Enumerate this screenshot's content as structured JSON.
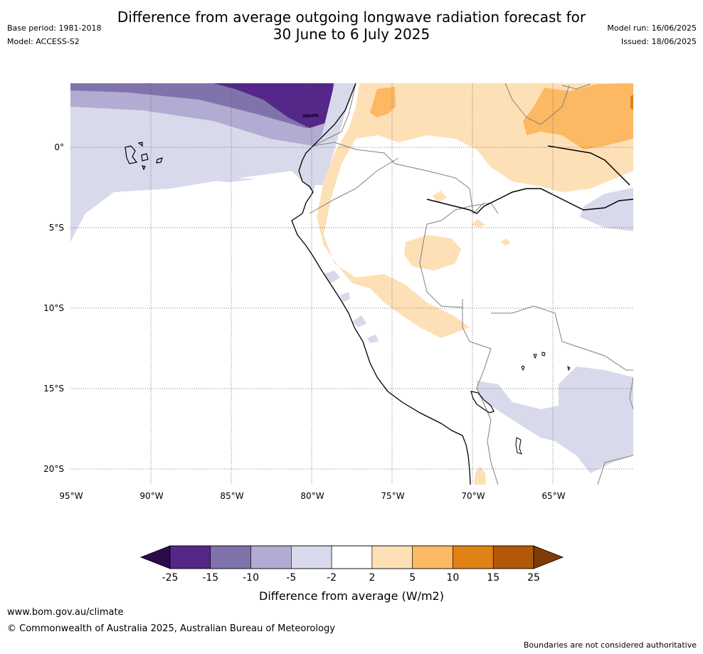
{
  "header": {
    "title_line1": "Difference from average outgoing longwave radiation forecast for",
    "title_line2": "30 June to 6 July 2025",
    "base_period": "Base period: 1981-2018",
    "model": "Model: ACCESS-S2",
    "model_run": "Model run: 16/06/2025",
    "issued": "Issued: 18/06/2025"
  },
  "map": {
    "region": "Western South America and eastern tropical Pacific",
    "lon_range": [
      -95,
      -60
    ],
    "lat_range": [
      -21,
      4
    ],
    "lat_labels": [
      "0°",
      "5°S",
      "10°S",
      "15°S",
      "20°S"
    ],
    "lon_labels": [
      "95°W",
      "90°W",
      "85°W",
      "80°W",
      "75°W",
      "70°W",
      "65°W"
    ],
    "gridlines": "dotted",
    "colors": {
      "le_-25": "#2d0a4a",
      "-25_-15": "#542788",
      "-15_-10": "#8073ac",
      "-10_-5": "#b2abd2",
      "-5_-2": "#d8daeb",
      "-2_2": "#ffffff",
      "2_5": "#fee0b6",
      "5_10": "#fdb863",
      "10_15": "#e08214",
      "15_25": "#b35806",
      "ge_25": "#7f3b08"
    }
  },
  "colorbar": {
    "tick_labels": [
      "-25",
      "-15",
      "-10",
      "-5",
      "-2",
      "2",
      "5",
      "10",
      "15",
      "25"
    ],
    "colors": [
      "#542788",
      "#8073ac",
      "#b2abd2",
      "#d8daeb",
      "#ffffff",
      "#fee0b6",
      "#fdb863",
      "#e08214",
      "#b35806"
    ],
    "low_extend_color": "#2d0a4a",
    "high_extend_color": "#7f3b08",
    "title": "Difference from average (W/m2)"
  },
  "footer": {
    "url": "www.bom.gov.au/climate",
    "copyright": "© Commonwealth of Australia 2025, Australian Bureau of Meteorology",
    "note": "Boundaries are not considered authoritative"
  }
}
